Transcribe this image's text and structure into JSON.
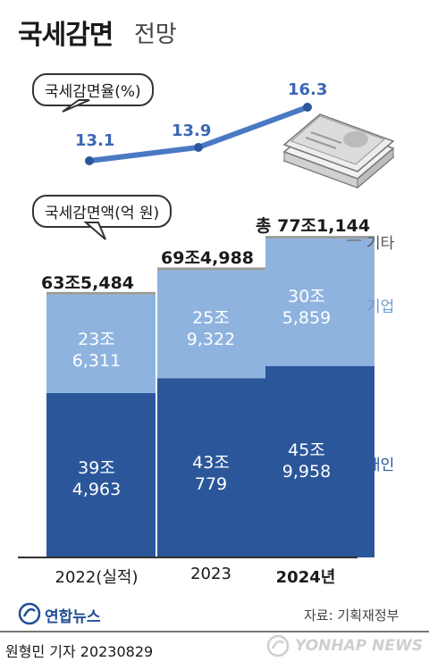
{
  "title": {
    "main": "국세감면",
    "sub": "전망"
  },
  "chart_data": [
    {
      "type": "line",
      "label": "국세감면율(%)",
      "x": [
        "2022(실적)",
        "2023",
        "2024년"
      ],
      "values": [
        13.1,
        13.9,
        16.3
      ],
      "value_labels": [
        "13.1",
        "13.9",
        "16.3"
      ],
      "color": "#4a79c4"
    },
    {
      "type": "bar",
      "stacked": true,
      "label": "국세감면액(억 원)",
      "categories": [
        "2022(실적)",
        "2023",
        "2024년"
      ],
      "series": [
        {
          "name": "개인",
          "values": [
            394963,
            430779,
            459958
          ],
          "labels": [
            [
              "39조",
              "4,963"
            ],
            [
              "43조",
              "779"
            ],
            [
              "45조",
              "9,958"
            ]
          ],
          "color": "#2b579a"
        },
        {
          "name": "기업",
          "values": [
            236311,
            259322,
            305859
          ],
          "labels": [
            [
              "23조",
              "6,311"
            ],
            [
              "25조",
              "9,322"
            ],
            [
              "30조",
              "5,859"
            ]
          ],
          "color": "#8fb3df"
        },
        {
          "name": "기타",
          "values": [
            4210,
            4887,
            5327
          ],
          "labels": [],
          "color": "#9a9a9a"
        }
      ],
      "totals": [
        "63조5,484",
        "69조4,988",
        "총 77조1,144"
      ],
      "total_values": [
        635484,
        694988,
        771144
      ]
    }
  ],
  "footer": {
    "logo": "연합뉴스",
    "source": "자료: 기획재정부",
    "reporter": "원형민 기자  20230829",
    "watermark": "YONHAP NEWS"
  }
}
